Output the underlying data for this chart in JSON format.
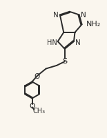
{
  "bg_color": "#faf6ee",
  "line_color": "#2a2a2a",
  "line_width": 1.4,
  "font_size": 7.0,
  "fig_width": 1.55,
  "fig_height": 2.01,
  "dpi": 100,
  "xlim": [
    0,
    10
  ],
  "ylim": [
    0,
    13
  ]
}
